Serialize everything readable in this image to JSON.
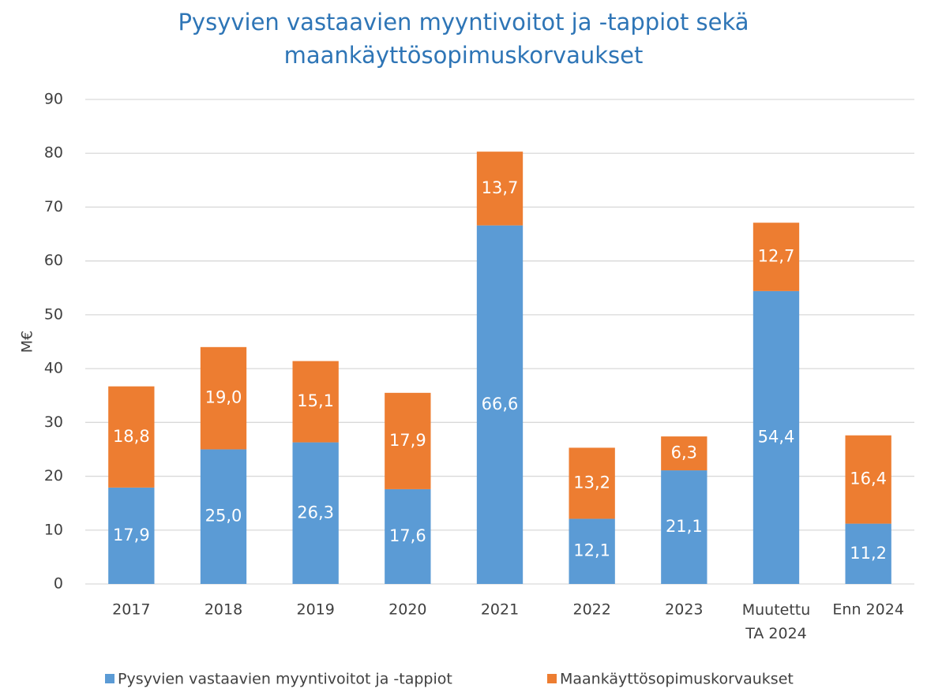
{
  "chart_data": {
    "type": "stacked_bar",
    "title": [
      "Pysyvien vastaavien myyntivoitot ja -tappiot sekä",
      "maankäyttösopimuskorvaukset"
    ],
    "y_label": "M€",
    "categories": [
      "2017",
      "2018",
      "2019",
      "2020",
      "2021",
      "2022",
      "2023",
      "Muutettu TA 2024",
      "Enn 2024"
    ],
    "series": [
      {
        "name": "Pysyvien vastaavien myyntivoitot ja -tappiot",
        "color": "#5b9bd5",
        "values": [
          17.9,
          25.0,
          26.3,
          17.6,
          66.6,
          12.1,
          21.1,
          54.4,
          11.2
        ],
        "value_labels": [
          "17,9",
          "25,0",
          "26,3",
          "17,6",
          "66,6",
          "12,1",
          "21,1",
          "54,4",
          "11,2"
        ]
      },
      {
        "name": "Maankäyttösopimuskorvaukset",
        "color": "#ed7d31",
        "values": [
          18.8,
          19.0,
          15.1,
          17.9,
          13.7,
          13.2,
          6.3,
          12.7,
          16.4
        ],
        "value_labels": [
          "18,8",
          "19,0",
          "15,1",
          "17,9",
          "13,7",
          "13,2",
          "6,3",
          "12,7",
          "16,4"
        ]
      }
    ],
    "ylim": [
      0,
      90
    ],
    "yticks": [
      0,
      10,
      20,
      30,
      40,
      50,
      60,
      70,
      80,
      90
    ],
    "grid": true,
    "legend": "bottom"
  }
}
